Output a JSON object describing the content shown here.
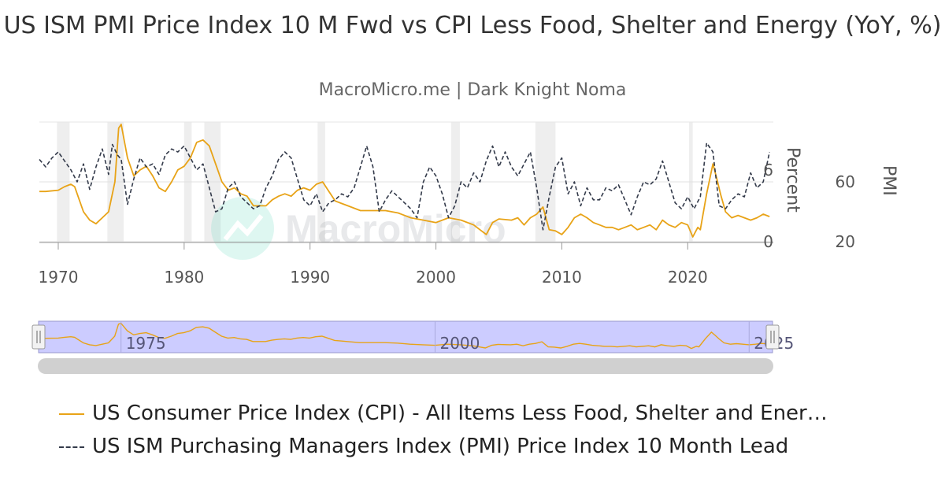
{
  "header": {
    "title": "US ISM PMI Price Index 10 M Fwd vs CPI Less Food, Shelter and Energy (YoY, %)",
    "subtitle": "MacroMicro.me | Dark Knight Noma"
  },
  "watermark": {
    "text": "MacroMicro"
  },
  "colors": {
    "cpi": "#e8a317",
    "pmi": "#333a4a",
    "recession": "#eeeeee",
    "navigator": "#ccccff"
  },
  "legend": {
    "cpi_label": "US Consumer Price Index (CPI) - All Items Less Food, Shelter and Ener…",
    "pmi_label": "US ISM Purchasing Managers Index (PMI) Price Index 10 Month Lead"
  },
  "chart_data": {
    "type": "line",
    "title": "US ISM PMI Price Index 10 M Fwd vs CPI Less Food, Shelter and Energy (YoY, %)",
    "subtitle": "MacroMicro.me | Dark Knight Noma",
    "xlim": [
      1968.5,
      2026.8
    ],
    "x_ticks": [
      "1970",
      "1980",
      "1990",
      "2000",
      "2010",
      "2020"
    ],
    "axes": [
      {
        "id": "cpi",
        "label": "Percent",
        "range": [
          0,
          10
        ],
        "ticks": [
          0,
          6
        ],
        "side": "right"
      },
      {
        "id": "pmi",
        "label": "PMI",
        "range": [
          20,
          100
        ],
        "ticks": [
          20,
          60
        ],
        "side": "right"
      }
    ],
    "navigator_ticks": [
      "1975",
      "2000",
      "2025"
    ],
    "recessions": [
      [
        1969.9,
        1970.9
      ],
      [
        1973.9,
        1975.2
      ],
      [
        1980.0,
        1980.6
      ],
      [
        1981.6,
        1982.9
      ],
      [
        1990.6,
        1991.2
      ],
      [
        2001.2,
        2001.9
      ],
      [
        2007.9,
        2009.5
      ],
      [
        2020.1,
        2020.4
      ]
    ],
    "series": [
      {
        "name": "US Consumer Price Index (CPI) - All Items Less Food, Shelter and Energy",
        "axis": "cpi",
        "color": "#e8a317",
        "style": "solid",
        "x": [
          1968.5,
          1969,
          1970,
          1970.5,
          1971,
          1971.3,
          1972,
          1972.5,
          1973,
          1973.5,
          1974,
          1974.5,
          1974.8,
          1975,
          1975.5,
          1976,
          1976.5,
          1977,
          1977.5,
          1978,
          1978.5,
          1979,
          1979.5,
          1980,
          1980.5,
          1981,
          1981.5,
          1982,
          1982.5,
          1983,
          1983.5,
          1984,
          1984.5,
          1985,
          1985.5,
          1986,
          1986.5,
          1987,
          1987.5,
          1988,
          1988.5,
          1989,
          1989.5,
          1990,
          1990.5,
          1991,
          1991.5,
          1992,
          1992.5,
          1993,
          1994,
          1995,
          1996,
          1997,
          1998,
          1999,
          2000,
          2001,
          2002,
          2003,
          2003.5,
          2004,
          2004.5,
          2005,
          2006,
          2006.5,
          2007,
          2007.5,
          2008,
          2008.5,
          2009,
          2009.5,
          2010,
          2010.5,
          2011,
          2011.5,
          2012,
          2012.5,
          2013,
          2013.5,
          2014,
          2014.5,
          2015,
          2015.5,
          2016,
          2016.5,
          2017,
          2017.5,
          2018,
          2018.5,
          2019,
          2019.5,
          2020,
          2020.4,
          2020.8,
          2021,
          2021.5,
          2022,
          2022.3,
          2022.6,
          2023,
          2023.5,
          2024,
          2024.5,
          2025,
          2025.5,
          2026,
          2026.5
        ],
        "y": [
          4.2,
          4.2,
          4.3,
          4.6,
          4.8,
          4.6,
          2.5,
          1.8,
          1.5,
          2.0,
          2.5,
          5.0,
          9.5,
          9.8,
          7.0,
          5.5,
          6.0,
          6.3,
          5.5,
          4.5,
          4.2,
          5.0,
          6.0,
          6.3,
          7.0,
          8.3,
          8.5,
          8.0,
          6.5,
          5.0,
          4.3,
          4.5,
          4.0,
          3.8,
          3.0,
          3.0,
          3.0,
          3.5,
          3.8,
          4.0,
          3.8,
          4.3,
          4.5,
          4.3,
          4.8,
          5.0,
          4.2,
          3.4,
          3.2,
          3.0,
          2.6,
          2.6,
          2.6,
          2.4,
          2.0,
          1.8,
          1.6,
          2.0,
          1.8,
          1.4,
          1.0,
          0.6,
          1.6,
          1.9,
          1.8,
          2.0,
          1.4,
          2.0,
          2.3,
          2.9,
          1.0,
          0.9,
          0.6,
          1.2,
          2.0,
          2.3,
          2.0,
          1.6,
          1.4,
          1.2,
          1.2,
          1.0,
          1.2,
          1.4,
          1.0,
          1.2,
          1.4,
          1.0,
          1.8,
          1.4,
          1.2,
          1.6,
          1.4,
          0.4,
          1.2,
          1.0,
          4.0,
          6.5,
          5.3,
          4.0,
          2.5,
          2.0,
          2.2,
          2.0,
          1.8,
          2.0,
          2.3,
          2.1
        ]
      },
      {
        "name": "US ISM Purchasing Managers Index (PMI) Price Index 10 Month Lead",
        "axis": "pmi",
        "color": "#333a4a",
        "style": "dashed",
        "x": [
          1968.5,
          1969,
          1969.5,
          1970,
          1970.5,
          1971,
          1971.5,
          1972,
          1972.5,
          1973,
          1973.5,
          1974,
          1974.3,
          1974.7,
          1975,
          1975.5,
          1976,
          1976.5,
          1977,
          1977.5,
          1978,
          1978.5,
          1979,
          1979.5,
          1980,
          1980.5,
          1981,
          1981.5,
          1982,
          1982.5,
          1983,
          1983.5,
          1984,
          1984.5,
          1985,
          1985.5,
          1986,
          1986.5,
          1987,
          1987.5,
          1988,
          1988.5,
          1989,
          1989.5,
          1990,
          1990.5,
          1991,
          1991.5,
          1992,
          1992.5,
          1993,
          1993.5,
          1994,
          1994.5,
          1995,
          1995.5,
          1996,
          1996.5,
          1997,
          1997.5,
          1998,
          1998.5,
          1999,
          1999.5,
          2000,
          2000.5,
          2001,
          2001.5,
          2002,
          2002.5,
          2003,
          2003.5,
          2004,
          2004.5,
          2005,
          2005.5,
          2006,
          2006.5,
          2007,
          2007.5,
          2008,
          2008.5,
          2009,
          2009.5,
          2010,
          2010.5,
          2011,
          2011.5,
          2012,
          2012.5,
          2013,
          2013.5,
          2014,
          2014.5,
          2015,
          2015.5,
          2016,
          2016.5,
          2017,
          2017.5,
          2018,
          2018.5,
          2019,
          2019.5,
          2020,
          2020.5,
          2021,
          2021.5,
          2022,
          2022.5,
          2023,
          2023.5,
          2024,
          2024.5,
          2025,
          2025.5,
          2026,
          2026.5
        ],
        "y": [
          75,
          70,
          76,
          80,
          74,
          68,
          60,
          72,
          55,
          70,
          82,
          65,
          85,
          78,
          75,
          45,
          62,
          76,
          70,
          72,
          65,
          78,
          82,
          80,
          84,
          76,
          68,
          72,
          56,
          40,
          42,
          56,
          60,
          50,
          46,
          42,
          44,
          56,
          64,
          75,
          80,
          76,
          62,
          48,
          44,
          52,
          40,
          46,
          48,
          52,
          50,
          56,
          70,
          84,
          70,
          40,
          48,
          54,
          50,
          46,
          42,
          36,
          60,
          70,
          64,
          52,
          36,
          44,
          60,
          56,
          66,
          60,
          74,
          84,
          70,
          80,
          70,
          64,
          72,
          80,
          56,
          28,
          50,
          70,
          76,
          52,
          60,
          44,
          56,
          48,
          48,
          56,
          54,
          58,
          48,
          38,
          50,
          60,
          58,
          62,
          74,
          60,
          46,
          42,
          50,
          42,
          50,
          86,
          80,
          44,
          42,
          48,
          52,
          50,
          66,
          56,
          60,
          80
        ]
      }
    ]
  }
}
